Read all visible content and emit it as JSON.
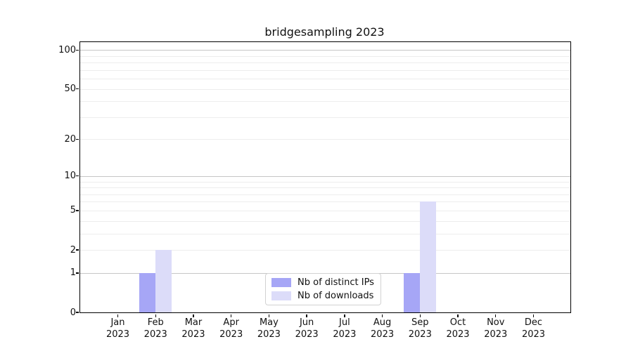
{
  "title": "bridgesampling 2023",
  "chart_data": {
    "type": "bar",
    "title": "bridgesampling 2023",
    "categories": [
      "Jan 2023",
      "Feb 2023",
      "Mar 2023",
      "Apr 2023",
      "May 2023",
      "Jun 2023",
      "Jul 2023",
      "Aug 2023",
      "Sep 2023",
      "Oct 2023",
      "Nov 2023",
      "Dec 2023"
    ],
    "series": [
      {
        "name": "Nb of distinct IPs",
        "color": "#a6a6f6",
        "values": [
          0,
          1,
          0,
          0,
          0,
          0,
          0,
          0,
          1,
          0,
          0,
          0
        ]
      },
      {
        "name": "Nb of downloads",
        "color": "#dcdcf9",
        "values": [
          0,
          2,
          0,
          0,
          0,
          0,
          0,
          0,
          6,
          0,
          0,
          0
        ]
      }
    ],
    "xlabel": "",
    "ylabel": "",
    "yscale": "log1p",
    "ylim": [
      0,
      115
    ],
    "yticks": [
      0,
      1,
      2,
      5,
      10,
      20,
      50,
      100
    ],
    "major_gridlines": [
      1,
      10,
      100
    ],
    "minor_gridlines": [
      2,
      3,
      4,
      5,
      6,
      7,
      8,
      9,
      20,
      30,
      40,
      50,
      60,
      70,
      80,
      90
    ],
    "grid": true,
    "legend_position": "lower center"
  },
  "legend": {
    "items": [
      {
        "label": "Nb of distinct IPs",
        "color": "#a6a6f6"
      },
      {
        "label": "Nb of downloads",
        "color": "#dcdcf9"
      }
    ]
  },
  "colors": {
    "axis": "#000000",
    "major_grid": "#c6c6c6",
    "minor_grid": "#ededed",
    "background": "#ffffff"
  }
}
